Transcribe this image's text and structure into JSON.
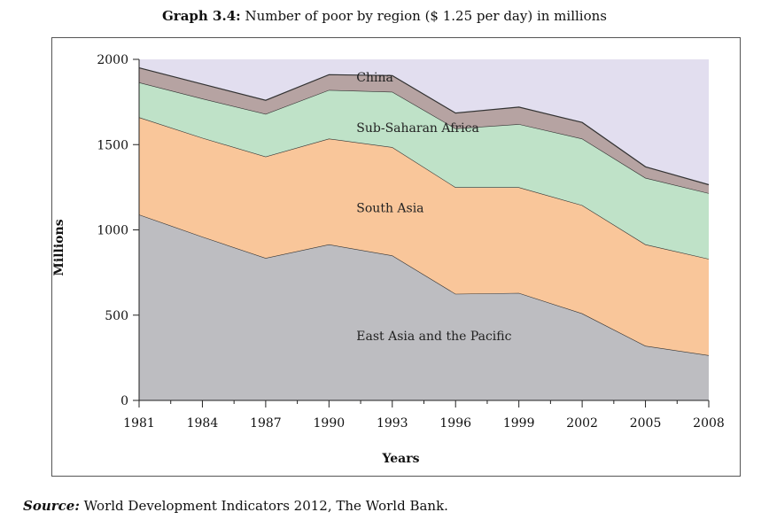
{
  "header": {
    "title_bold": "Graph 3.4:",
    "title_rest": " Number of poor by region ($ 1.25 per day) in millions"
  },
  "footer": {
    "source_bold": "Source:",
    "source_rest": " World Development Indicators 2012, The World Bank."
  },
  "chart_data": {
    "type": "area",
    "stacked": true,
    "xlabel": "Years",
    "ylabel": "Millions",
    "x": [
      1981,
      1984,
      1987,
      1990,
      1993,
      1996,
      1999,
      2002,
      2005,
      2008
    ],
    "xticks": [
      "1981",
      "1984",
      "1987",
      "1990",
      "1993",
      "1996",
      "1999",
      "2002",
      "2005",
      "2008"
    ],
    "yticks": [
      "0",
      "500",
      "1000",
      "1500",
      "2000"
    ],
    "ylim": [
      0,
      2000
    ],
    "grid": false,
    "series": [
      {
        "name": "East Asia and the Pacific",
        "color": "#bdbdc1",
        "values": [
          1090,
          960,
          835,
          915,
          850,
          625,
          630,
          510,
          320,
          265
        ]
      },
      {
        "name": "South Asia",
        "color": "#f9c69a",
        "values": [
          570,
          580,
          595,
          620,
          635,
          625,
          620,
          635,
          595,
          565
        ]
      },
      {
        "name": "Sub-Saharan Africa",
        "color": "#bfe2c8",
        "values": [
          205,
          230,
          250,
          285,
          325,
          345,
          370,
          390,
          390,
          385
        ]
      },
      {
        "name": "China",
        "color": "#b6a3a2",
        "values": [
          85,
          85,
          80,
          90,
          95,
          90,
          100,
          95,
          65,
          50
        ]
      }
    ],
    "background_area_color": "#e2deef"
  }
}
